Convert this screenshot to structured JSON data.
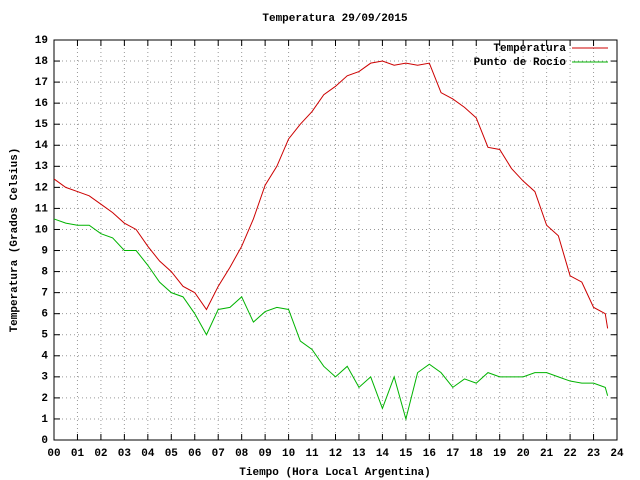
{
  "chart_data": {
    "type": "line",
    "title": "Temperatura 29/09/2015",
    "x_label": "Tiempo (Hora Local Argentina)",
    "y_label": "Temperatura (Grados Celsius)",
    "x": [
      0,
      0.5,
      1,
      1.5,
      2,
      2.5,
      3,
      3.5,
      4,
      4.5,
      5,
      5.5,
      6,
      6.5,
      7,
      7.5,
      8,
      8.5,
      9,
      9.5,
      10,
      10.5,
      11,
      11.5,
      12,
      12.5,
      13,
      13.5,
      14,
      14.5,
      15,
      15.5,
      16,
      16.5,
      17,
      17.5,
      18,
      18.5,
      19,
      19.5,
      20,
      20.5,
      21,
      21.5,
      22,
      22.5,
      23,
      23.5,
      23.6
    ],
    "series": [
      {
        "name": "Temperatura",
        "color": "#cc0000",
        "values": [
          12.4,
          12.0,
          11.8,
          11.6,
          11.2,
          10.8,
          10.3,
          10.0,
          9.2,
          8.5,
          8.0,
          7.3,
          7.0,
          6.2,
          7.3,
          8.2,
          9.2,
          10.5,
          12.1,
          13.0,
          14.3,
          15.0,
          15.6,
          16.4,
          16.8,
          17.3,
          17.5,
          17.9,
          18.0,
          17.8,
          17.9,
          17.8,
          17.9,
          16.5,
          16.2,
          15.8,
          15.3,
          13.9,
          13.8,
          12.9,
          12.3,
          11.8,
          10.2,
          9.7,
          7.8,
          7.5,
          6.3,
          6.0,
          5.3
        ]
      },
      {
        "name": "Punto de Rocío",
        "color": "#00b300",
        "values": [
          10.5,
          10.3,
          10.2,
          10.2,
          9.8,
          9.6,
          9.0,
          9.0,
          8.3,
          7.5,
          7.0,
          6.8,
          6.0,
          5.0,
          6.2,
          6.3,
          6.8,
          5.6,
          6.1,
          6.3,
          6.2,
          4.7,
          4.3,
          3.5,
          3.0,
          3.5,
          2.5,
          3.0,
          1.5,
          3.0,
          1.0,
          3.2,
          3.6,
          3.2,
          2.5,
          2.9,
          2.7,
          3.2,
          3.0,
          3.0,
          3.0,
          3.2,
          3.2,
          3.0,
          2.8,
          2.7,
          2.7,
          2.5,
          2.1
        ]
      }
    ],
    "xlim": [
      0,
      24
    ],
    "xticks": [
      {
        "value": 0,
        "label": "00"
      },
      {
        "value": 1,
        "label": "01"
      },
      {
        "value": 2,
        "label": "02"
      },
      {
        "value": 3,
        "label": "03"
      },
      {
        "value": 4,
        "label": "04"
      },
      {
        "value": 5,
        "label": "05"
      },
      {
        "value": 6,
        "label": "06"
      },
      {
        "value": 7,
        "label": "07"
      },
      {
        "value": 8,
        "label": "08"
      },
      {
        "value": 9,
        "label": "09"
      },
      10,
      11,
      12,
      13,
      14,
      15,
      16,
      17,
      18,
      19,
      20,
      21,
      22,
      23,
      24
    ],
    "ylim": [
      0,
      19
    ],
    "yticks": [
      0,
      1,
      2,
      3,
      4,
      5,
      6,
      7,
      8,
      9,
      10,
      11,
      12,
      13,
      14,
      15,
      16,
      17,
      18,
      19
    ],
    "grid": true,
    "legend": "top-right"
  }
}
